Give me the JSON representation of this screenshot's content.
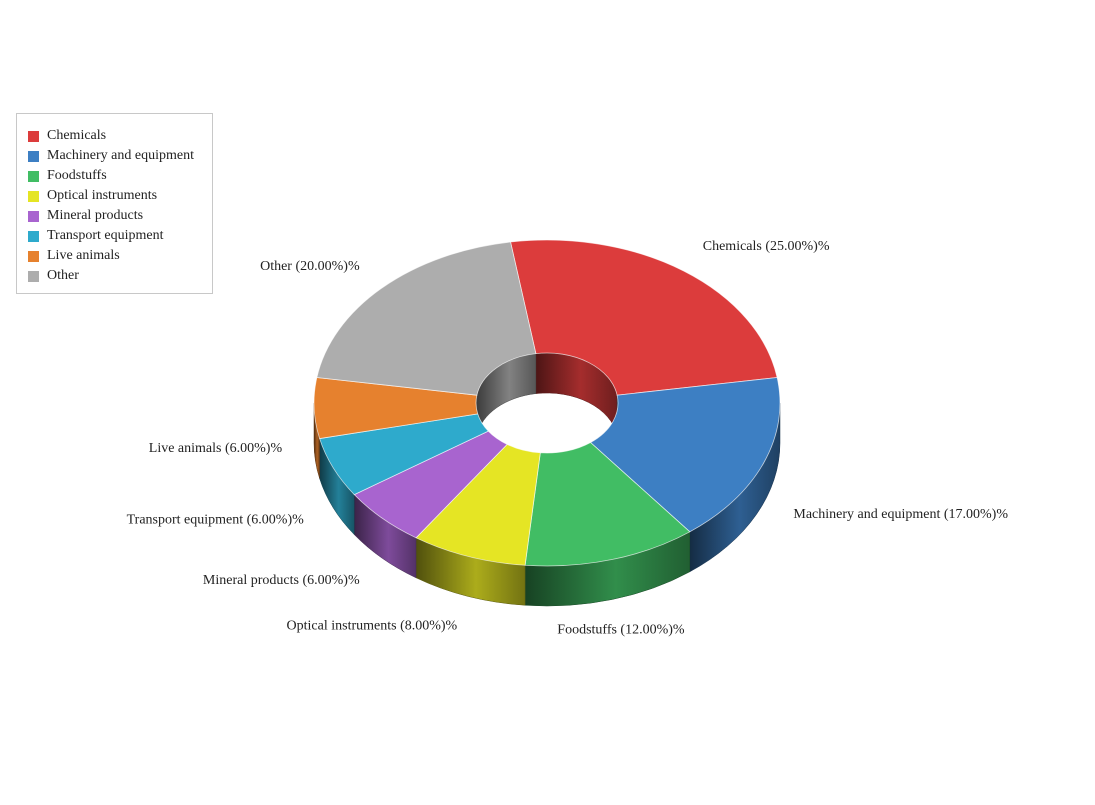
{
  "chart_data": {
    "type": "pie",
    "variant": "3d-donut",
    "title": "",
    "categories": [
      "Chemicals",
      "Machinery and equipment",
      "Foodstuffs",
      "Optical instruments",
      "Mineral products",
      "Transport equipment",
      "Live animals",
      "Other"
    ],
    "values": [
      25,
      17,
      12,
      8,
      6,
      6,
      6,
      20
    ],
    "labels": [
      "Chemicals (25.00%)%",
      "Machinery and equipment (17.00%)%",
      "Foodstuffs (12.00%)%",
      "Optical instruments (8.00%)%",
      "Mineral products (6.00%)%",
      "Transport equipment (6.00%)%",
      "Live animals (6.00%)%",
      "Other (20.00%)%"
    ],
    "colors": [
      "#dc3c3c",
      "#3d7fc3",
      "#41bd64",
      "#e5e524",
      "#a864cf",
      "#2eaacc",
      "#e6812e",
      "#adadad"
    ],
    "legend_position": "top-left"
  }
}
